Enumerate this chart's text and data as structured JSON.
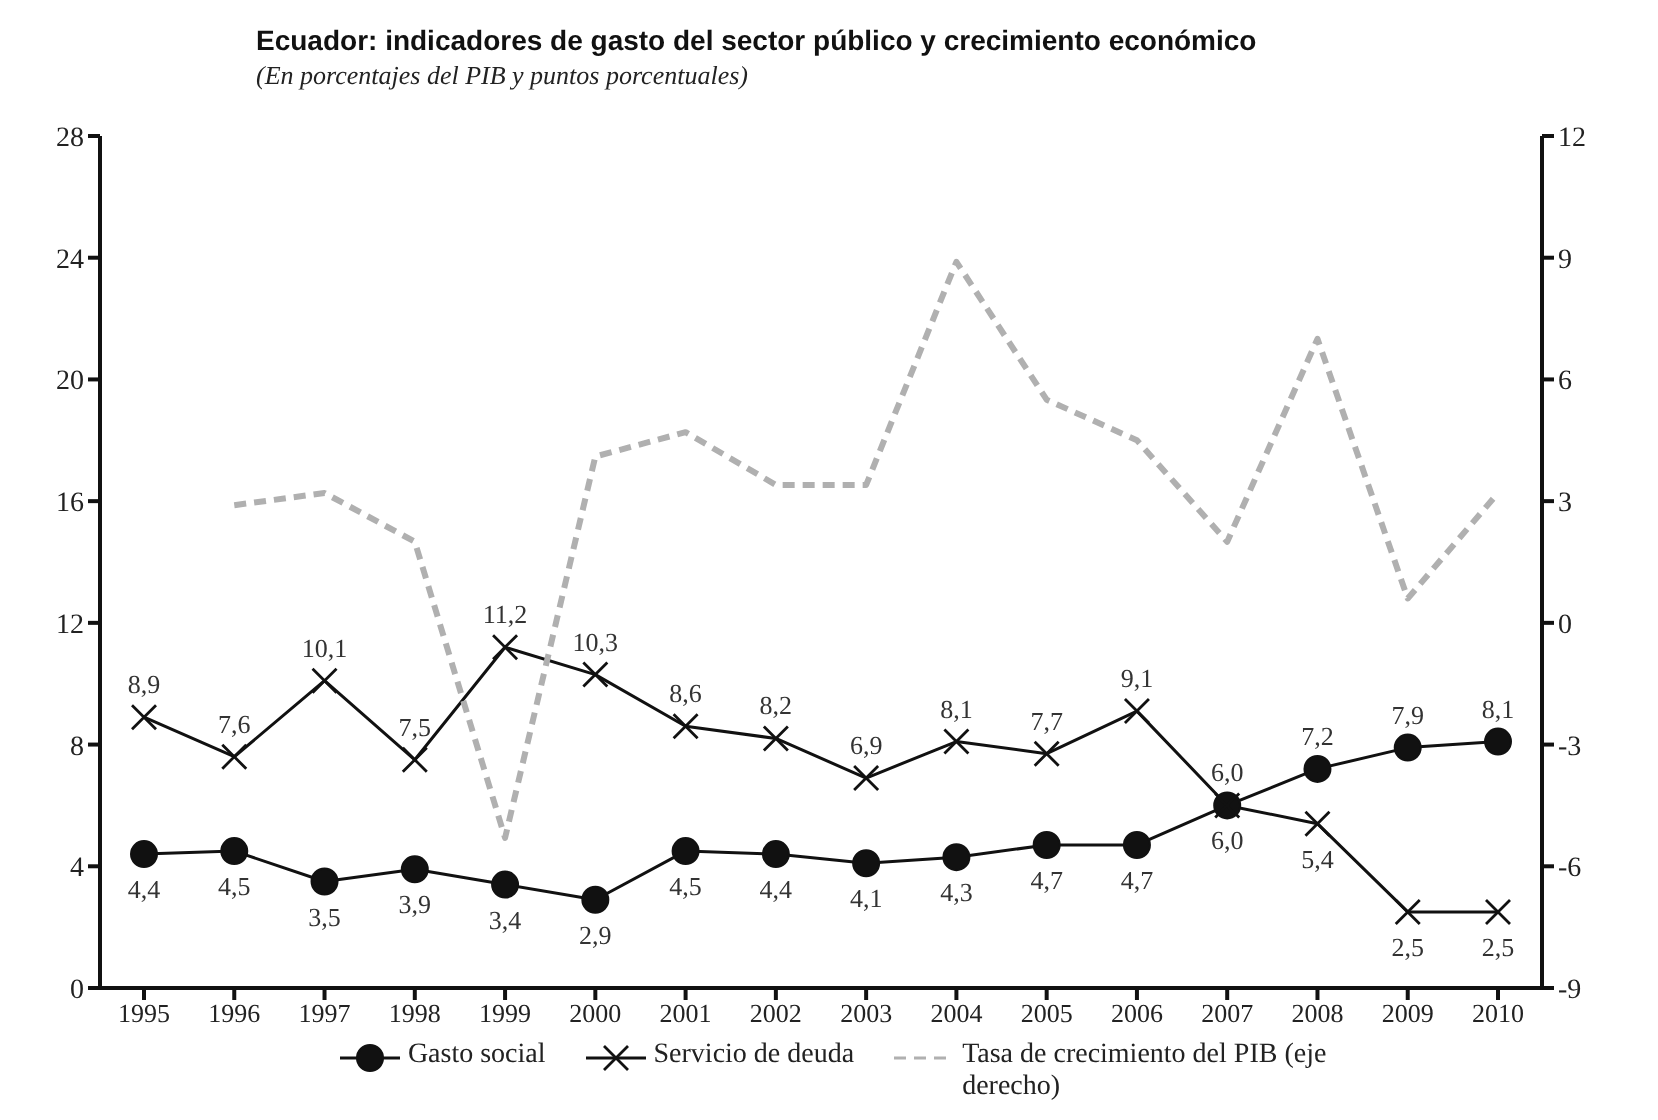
{
  "chart_data": {
    "type": "line",
    "title": "Ecuador: indicadores de gasto del sector público y crecimiento económico",
    "subtitle": "(En porcentajes del PIB y puntos porcentuales)",
    "categories": [
      "1995",
      "1996",
      "1997",
      "1998",
      "1999",
      "2000",
      "2001",
      "2002",
      "2003",
      "2004",
      "2005",
      "2006",
      "2007",
      "2008",
      "2009",
      "2010"
    ],
    "series": [
      {
        "name": "Gasto social",
        "color": "#111111",
        "marker": "circle",
        "line_style": "solid",
        "values": [
          4.4,
          4.5,
          3.5,
          3.9,
          3.4,
          2.9,
          4.5,
          4.4,
          4.1,
          4.3,
          4.7,
          4.7,
          6.0,
          7.2,
          7.9,
          8.1
        ],
        "value_labels": [
          "4,4",
          "4,5",
          "3,5",
          "3,9",
          "3,4",
          "2,9",
          "4,5",
          "4,4",
          "4,1",
          "4,3",
          "4,7",
          "4,7",
          "6,0",
          "7,2",
          "7,9",
          "8,1"
        ]
      },
      {
        "name": "Servicio de deuda",
        "color": "#111111",
        "marker": "cross",
        "line_style": "solid",
        "values": [
          8.9,
          7.6,
          10.1,
          7.5,
          11.2,
          10.3,
          8.6,
          8.2,
          6.9,
          8.1,
          7.7,
          9.1,
          6.0,
          5.4,
          2.5,
          2.5
        ],
        "value_labels": [
          "8,9",
          "7,6",
          "10,1",
          "7,5",
          "11,2",
          "10,3",
          "8,6",
          "8,2",
          "6,9",
          "8,1",
          "7,7",
          "9,1",
          "6,0",
          "5,4",
          "2,5",
          "2,5"
        ]
      },
      {
        "name": "Tasa de crecimiento del PIB (eje derecho)",
        "color": "#b0b0b0",
        "marker": "none",
        "line_style": "dashed",
        "axis": "y2",
        "values": [
          null,
          2.9,
          3.2,
          2.0,
          -5.3,
          4.1,
          4.7,
          3.4,
          3.4,
          8.9,
          5.5,
          4.5,
          2.0,
          7.0,
          0.6,
          3.2
        ]
      }
    ],
    "ylim": [
      0,
      28
    ],
    "yticks": [
      0,
      4,
      8,
      12,
      16,
      20,
      24,
      28
    ],
    "y2lim": [
      -9,
      12
    ],
    "y2ticks": [
      -9,
      -6,
      -3,
      0,
      3,
      6,
      9,
      12
    ],
    "grid": false,
    "legend": "bottom"
  }
}
